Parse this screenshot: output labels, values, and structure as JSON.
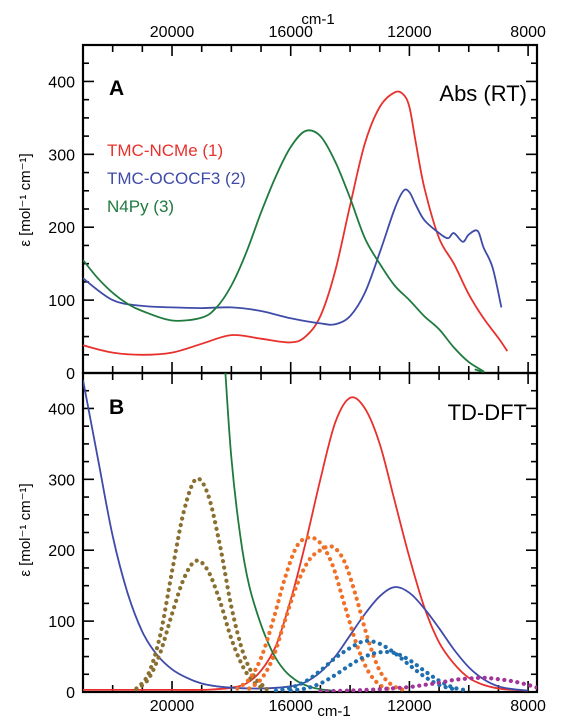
{
  "colors": {
    "red": "#e8312c",
    "blue": "#3f4ba8",
    "green": "#1f7a3e",
    "orange": "#f07027",
    "olive": "#8a7030",
    "teal": "#1f6fb0",
    "magenta": "#a2349a",
    "axis": "#000000"
  },
  "chart_data": [
    {
      "type": "line",
      "panel_letter": "A",
      "panel_title": "Abs (RT)",
      "top_axis_label": "cm-1",
      "ylabel": "ε [mol⁻¹ cm⁻¹]",
      "xlim": [
        23000,
        7700
      ],
      "ylim": [
        0,
        450
      ],
      "x_ticks": [
        20000,
        16000,
        12000,
        8000
      ],
      "y_ticks": [
        0,
        100,
        200,
        300,
        400
      ],
      "x_tick_labels": [
        "20000",
        "16000",
        "12000",
        "8000"
      ],
      "y_tick_labels": [
        "0",
        "100",
        "200",
        "300",
        "400"
      ],
      "legend_placement": "upper-left",
      "series": [
        {
          "name": "TMC-NCMe (1)",
          "color_key": "red",
          "style": "solid",
          "x": [
            23000,
            22000,
            21000,
            20000,
            19000,
            18000,
            17000,
            16000,
            15500,
            15000,
            14500,
            14000,
            13500,
            13000,
            12500,
            12200,
            12000,
            11800,
            11500,
            11000,
            10500,
            10000,
            9500,
            9000,
            8700
          ],
          "y": [
            38,
            28,
            25,
            28,
            40,
            52,
            47,
            42,
            50,
            78,
            140,
            230,
            315,
            365,
            385,
            382,
            365,
            320,
            255,
            185,
            150,
            108,
            75,
            48,
            30
          ]
        },
        {
          "name": "TMC-OCOCF3 (2)",
          "color_key": "blue",
          "style": "solid",
          "x": [
            23000,
            22000,
            21000,
            20000,
            19000,
            18000,
            17000,
            16000,
            15000,
            14500,
            14000,
            13500,
            13000,
            12500,
            12200,
            12000,
            11800,
            11500,
            11000,
            10700,
            10500,
            10200,
            10000,
            9700,
            9500,
            9200,
            8900
          ],
          "y": [
            130,
            100,
            92,
            90,
            89,
            90,
            85,
            75,
            68,
            67,
            78,
            110,
            165,
            225,
            250,
            248,
            232,
            210,
            192,
            185,
            192,
            180,
            190,
            195,
            172,
            145,
            90
          ]
        },
        {
          "name": "N4Py (3)",
          "color_key": "green",
          "style": "solid",
          "x": [
            23000,
            22500,
            22000,
            21500,
            21000,
            20000,
            19000,
            18500,
            18000,
            17500,
            17000,
            16500,
            16000,
            15500,
            15000,
            14500,
            14000,
            13500,
            13000,
            12500,
            12000,
            11500,
            11000,
            10500,
            10000,
            9500,
            9800
          ],
          "y": [
            155,
            130,
            110,
            95,
            85,
            72,
            76,
            90,
            120,
            165,
            220,
            270,
            310,
            332,
            325,
            290,
            240,
            185,
            150,
            120,
            100,
            78,
            60,
            35,
            15,
            2,
            5
          ]
        }
      ]
    },
    {
      "type": "line",
      "panel_letter": "B",
      "panel_title": "TD-DFT",
      "bottom_axis_label": "cm-1",
      "ylabel": "ε [mol⁻¹ cm⁻¹]",
      "xlim": [
        23000,
        7700
      ],
      "ylim": [
        0,
        450
      ],
      "x_ticks": [
        20000,
        16000,
        12000,
        8000
      ],
      "y_ticks": [
        0,
        100,
        200,
        300,
        400
      ],
      "x_tick_labels": [
        "20000",
        "16000",
        "12000",
        "8000"
      ],
      "y_tick_labels": [
        "0",
        "100",
        "200",
        "300",
        "400"
      ],
      "series": [
        {
          "color_key": "red",
          "style": "solid",
          "x": [
            23000,
            20000,
            19000,
            18500,
            18000,
            17500,
            17000,
            16500,
            16000,
            15500,
            15000,
            14500,
            14000,
            13500,
            13000,
            12500,
            12000,
            11500,
            11000,
            10500,
            10000,
            9500,
            9000,
            8500,
            8000
          ],
          "y": [
            3,
            3,
            3,
            4,
            6,
            12,
            30,
            65,
            130,
            210,
            300,
            380,
            415,
            400,
            350,
            270,
            190,
            120,
            70,
            40,
            20,
            10,
            5,
            3,
            2
          ]
        },
        {
          "color_key": "blue",
          "style": "solid",
          "x": [
            23000,
            22500,
            22000,
            21500,
            21000,
            20500,
            20000,
            19500,
            19000,
            18500,
            18000,
            17000,
            16000,
            15500,
            15000,
            14500,
            14000,
            13500,
            13000,
            12500,
            12000,
            11500,
            11000,
            10500,
            10000,
            9500,
            9000,
            8500,
            8000
          ],
          "y": [
            440,
            330,
            220,
            140,
            85,
            52,
            32,
            20,
            12,
            8,
            6,
            5,
            8,
            14,
            28,
            50,
            80,
            110,
            135,
            148,
            140,
            118,
            90,
            60,
            35,
            18,
            8,
            4,
            2
          ]
        },
        {
          "color_key": "green",
          "style": "solid",
          "x": [
            18200,
            18000,
            17700,
            17400,
            17000,
            16600,
            16200,
            15800,
            15400,
            15000,
            14600
          ],
          "y": [
            450,
            330,
            220,
            150,
            95,
            55,
            30,
            16,
            8,
            4,
            2
          ]
        },
        {
          "color_key": "olive",
          "style": "dotted",
          "x": [
            21200,
            20800,
            20400,
            20000,
            19600,
            19200,
            18800,
            18400,
            18000,
            17600,
            17200,
            16800
          ],
          "y": [
            5,
            25,
            80,
            170,
            255,
            300,
            280,
            210,
            120,
            55,
            20,
            5
          ]
        },
        {
          "color_key": "olive",
          "style": "dotted",
          "x": [
            21200,
            20800,
            20400,
            20000,
            19600,
            19200,
            18800,
            18400,
            18000,
            17600,
            17200,
            16800
          ],
          "y": [
            4,
            18,
            55,
            110,
            160,
            185,
            172,
            130,
            75,
            35,
            12,
            4
          ]
        },
        {
          "color_key": "orange",
          "style": "dotted",
          "x": [
            17800,
            17400,
            17000,
            16600,
            16200,
            15800,
            15400,
            15000,
            14600,
            14200,
            13800,
            13400,
            13000,
            12600
          ],
          "y": [
            5,
            18,
            48,
            100,
            160,
            205,
            218,
            210,
            180,
            125,
            70,
            30,
            10,
            3
          ]
        },
        {
          "color_key": "orange",
          "style": "dotted",
          "x": [
            17400,
            17000,
            16600,
            16200,
            15800,
            15400,
            15000,
            14600,
            14200,
            13800,
            13400,
            13000,
            12600,
            12200
          ],
          "y": [
            5,
            18,
            48,
            100,
            150,
            185,
            200,
            205,
            185,
            135,
            75,
            30,
            10,
            3
          ]
        },
        {
          "color_key": "teal",
          "style": "dotted",
          "x": [
            16500,
            16000,
            15500,
            15000,
            14500,
            14000,
            13500,
            13000,
            12500,
            12000,
            11500,
            11000,
            10500
          ],
          "y": [
            2,
            6,
            15,
            30,
            48,
            62,
            72,
            68,
            55,
            38,
            22,
            10,
            4
          ]
        },
        {
          "color_key": "teal",
          "style": "dotted",
          "x": [
            16000,
            15500,
            15000,
            14500,
            14000,
            13500,
            13000,
            12500,
            12000,
            11500,
            11000,
            10500,
            10000
          ],
          "y": [
            2,
            5,
            12,
            24,
            38,
            50,
            56,
            55,
            45,
            30,
            16,
            6,
            2
          ]
        },
        {
          "color_key": "magenta",
          "style": "dotted",
          "x": [
            15000,
            14000,
            13000,
            12000,
            11500,
            11000,
            10500,
            10000,
            9500,
            9000,
            8500,
            8000,
            7700
          ],
          "y": [
            1,
            2,
            4,
            7,
            10,
            13,
            17,
            19,
            20,
            18,
            15,
            10,
            6
          ]
        }
      ]
    }
  ]
}
